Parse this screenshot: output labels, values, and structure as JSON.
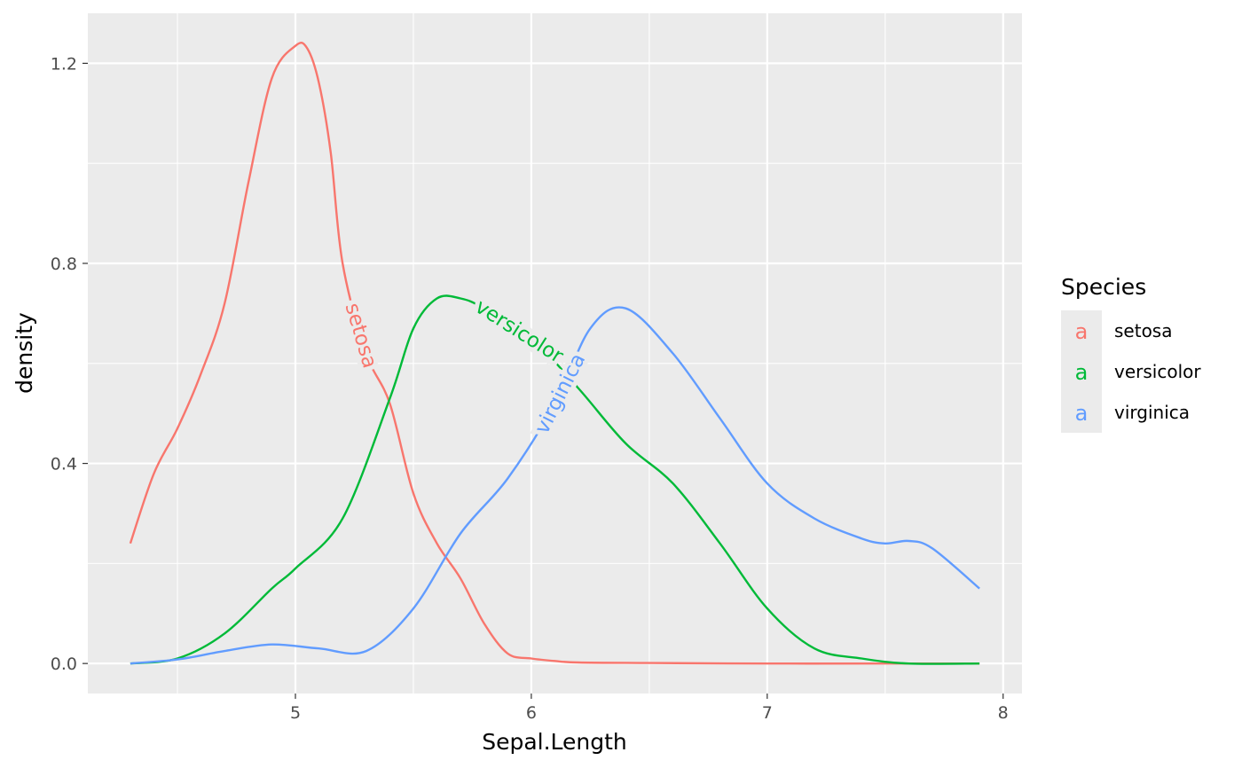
{
  "chart_data": {
    "type": "line",
    "xlabel": "Sepal.Length",
    "ylabel": "density",
    "xlim": [
      4.12,
      8.08
    ],
    "ylim": [
      -0.06,
      1.3
    ],
    "x_ticks": [
      5,
      6,
      7,
      8
    ],
    "x_tick_labels": [
      "5",
      "6",
      "7",
      "8"
    ],
    "x_minor_ticks": [
      4.5,
      5.5,
      6.5,
      7.5
    ],
    "y_ticks": [
      0.0,
      0.4,
      0.8,
      1.2
    ],
    "y_tick_labels": [
      "0.0",
      "0.4",
      "0.8",
      "1.2"
    ],
    "y_minor_ticks": [
      0.2,
      0.6,
      1.0
    ],
    "grid": true,
    "background": "#ebebeb",
    "legend": {
      "title": "Species",
      "position": "right",
      "key_glyph": "a",
      "entries": [
        {
          "label": "setosa",
          "color": "#f8766d"
        },
        {
          "label": "versicolor",
          "color": "#00ba38"
        },
        {
          "label": "virginica",
          "color": "#619cff"
        }
      ]
    },
    "series": [
      {
        "name": "setosa",
        "color": "#f8766d",
        "direct_label": {
          "text": "setosa",
          "at_x": 5.28
        },
        "x": [
          4.3,
          4.4,
          4.5,
          4.6,
          4.7,
          4.8,
          4.9,
          5.0,
          5.05,
          5.1,
          5.15,
          5.2,
          5.3,
          5.4,
          5.5,
          5.6,
          5.7,
          5.8,
          5.9,
          6.0,
          6.1,
          6.2,
          6.5,
          7.0,
          7.5,
          7.9
        ],
        "y": [
          0.24,
          0.38,
          0.47,
          0.58,
          0.72,
          0.96,
          1.17,
          1.235,
          1.23,
          1.16,
          1.02,
          0.8,
          0.62,
          0.52,
          0.34,
          0.24,
          0.17,
          0.08,
          0.02,
          0.01,
          0.005,
          0.002,
          0.001,
          0.0,
          0.0,
          0.0
        ]
      },
      {
        "name": "versicolor",
        "color": "#00ba38",
        "direct_label": {
          "text": "versicolor",
          "at_x": 5.95
        },
        "x": [
          4.3,
          4.5,
          4.7,
          4.9,
          5.0,
          5.2,
          5.4,
          5.5,
          5.6,
          5.7,
          5.8,
          6.0,
          6.2,
          6.4,
          6.6,
          6.8,
          7.0,
          7.2,
          7.4,
          7.6,
          7.9
        ],
        "y": [
          0.0,
          0.01,
          0.06,
          0.15,
          0.19,
          0.29,
          0.53,
          0.67,
          0.73,
          0.73,
          0.71,
          0.65,
          0.55,
          0.44,
          0.36,
          0.24,
          0.11,
          0.03,
          0.01,
          0.0,
          0.0
        ]
      },
      {
        "name": "virginica",
        "color": "#619cff",
        "direct_label": {
          "text": "virginica",
          "at_x": 6.12
        },
        "x": [
          4.3,
          4.5,
          4.7,
          4.9,
          5.1,
          5.3,
          5.5,
          5.7,
          5.9,
          6.1,
          6.25,
          6.4,
          6.6,
          6.8,
          7.0,
          7.2,
          7.4,
          7.5,
          7.6,
          7.7,
          7.9
        ],
        "y": [
          0.0,
          0.008,
          0.025,
          0.038,
          0.03,
          0.025,
          0.11,
          0.26,
          0.37,
          0.52,
          0.67,
          0.71,
          0.62,
          0.49,
          0.36,
          0.29,
          0.25,
          0.24,
          0.245,
          0.23,
          0.15
        ]
      }
    ]
  }
}
